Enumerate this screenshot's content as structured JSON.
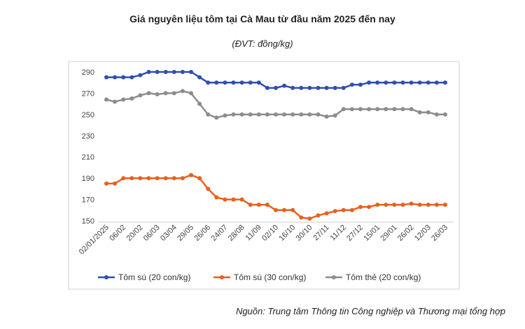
{
  "chart_data": {
    "type": "line",
    "title": "Giá nguyên liệu tôm tại Cà Mau từ đầu năm 2025 đến nay",
    "subtitle": "(ĐVT: đồng/kg)",
    "source": "Nguồn: Trung tâm Thông tin Công nghiệp và Thương mại tổng hợp",
    "categories": [
      "02/01/2025",
      null,
      "06/02",
      null,
      "20/02",
      null,
      "06/03",
      null,
      "03/04",
      null,
      "29/05",
      null,
      "26/06",
      null,
      "24/07",
      null,
      "28/08",
      null,
      "11/09",
      null,
      "02/10",
      null,
      "16/10",
      null,
      "30/10",
      null,
      "27/11",
      null,
      "11/12",
      null,
      "27/12",
      null,
      "15/01",
      null,
      "29/01",
      null,
      "26/02",
      null,
      "12/03",
      null,
      "26/03"
    ],
    "series": [
      {
        "name": "Tôm sú (20 con/kg)",
        "color": "#2f4fb0",
        "values": [
          285,
          285,
          285,
          285,
          287,
          290,
          290,
          290,
          290,
          290,
          290,
          285,
          280,
          280,
          280,
          280,
          280,
          280,
          280,
          275,
          275,
          277,
          275,
          275,
          275,
          275,
          275,
          275,
          275,
          278,
          278,
          280,
          280,
          280,
          280,
          280,
          280,
          280,
          280,
          280,
          280
        ]
      },
      {
        "name": "Tôm sú (30 con/kg)",
        "color": "#e8601c",
        "values": [
          185,
          185,
          190,
          190,
          190,
          190,
          190,
          190,
          190,
          190,
          193,
          190,
          180,
          172,
          170,
          170,
          170,
          165,
          165,
          165,
          160,
          160,
          160,
          153,
          152,
          155,
          157,
          159,
          160,
          160,
          163,
          163,
          165,
          165,
          165,
          165,
          166,
          165,
          165,
          165,
          165
        ]
      },
      {
        "name": "Tôm thẻ (20 con/kg)",
        "color": "#8c8c8c",
        "values": [
          264,
          262,
          264,
          265,
          268,
          270,
          269,
          270,
          270,
          272,
          270,
          260,
          250,
          247,
          249,
          250,
          250,
          250,
          250,
          250,
          250,
          250,
          250,
          250,
          250,
          250,
          248,
          249,
          255,
          255,
          255,
          255,
          255,
          255,
          255,
          255,
          255,
          252,
          252,
          250,
          250
        ]
      }
    ],
    "ylim": [
      150,
      290
    ],
    "yticks": [
      150,
      170,
      190,
      210,
      230,
      250,
      270,
      290
    ],
    "grid": false
  }
}
